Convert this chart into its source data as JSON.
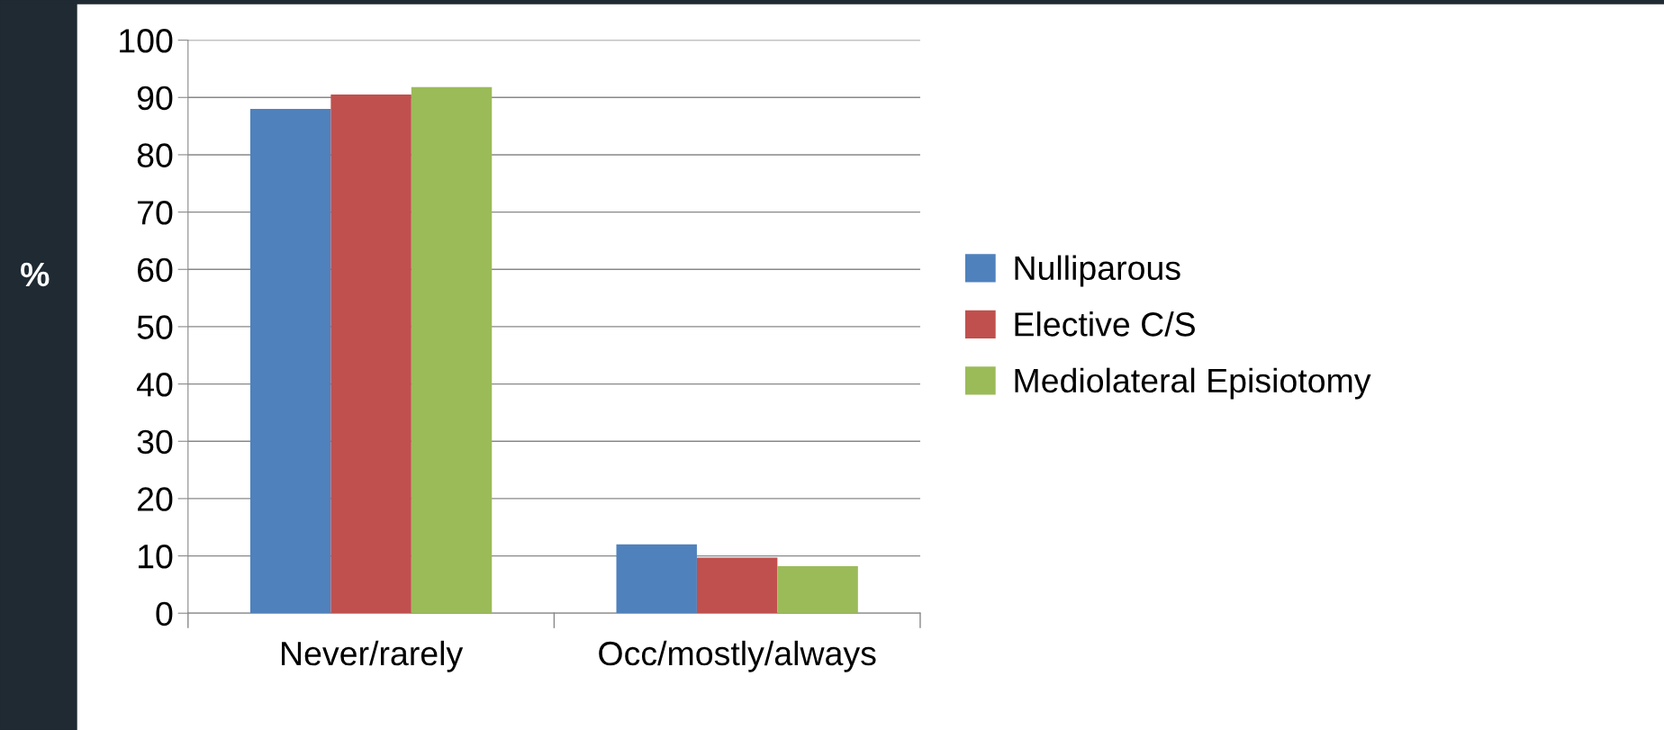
{
  "chart_data": {
    "type": "bar",
    "ylabel": "%",
    "categories": [
      "Never/rarely",
      "Occ/mostly/always"
    ],
    "series": [
      {
        "name": "Nulliparous",
        "color": "#4f81bd",
        "values": [
          88.0,
          12.0
        ]
      },
      {
        "name": "Elective C/S",
        "color": "#c0504d",
        "values": [
          90.5,
          9.7
        ]
      },
      {
        "name": "Mediolateral Episiotomy",
        "color": "#9bbb59",
        "values": [
          91.8,
          8.2
        ]
      }
    ],
    "ylim": [
      0,
      100
    ],
    "yticks": [
      0,
      10,
      20,
      30,
      40,
      50,
      60,
      70,
      80,
      90,
      100
    ],
    "grid": "y",
    "legend": "right"
  }
}
